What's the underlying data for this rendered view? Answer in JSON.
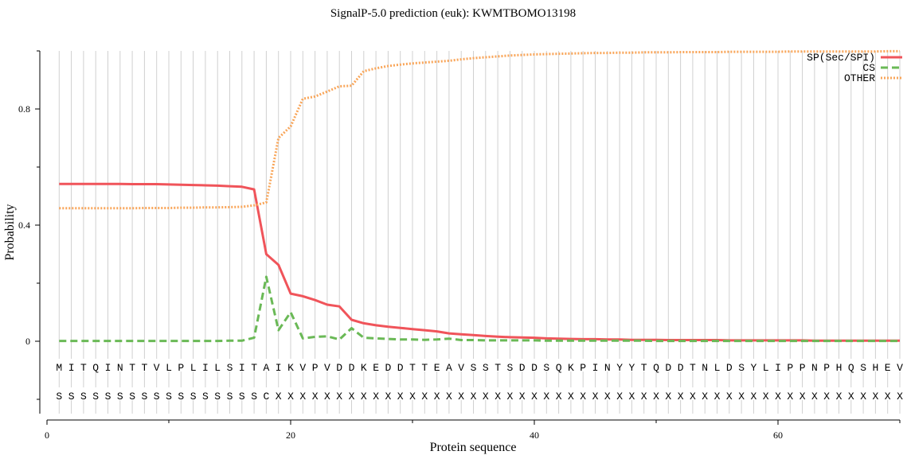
{
  "chart_data": {
    "type": "line",
    "title": "SignalP-5.0 prediction (euk):  KWMTBOMO13198",
    "xlabel": "Protein sequence",
    "ylabel": "Probability",
    "xlim": [
      0,
      70
    ],
    "ylim": [
      -0.25,
      1.0
    ],
    "xticks": [
      0,
      20,
      40,
      60
    ],
    "xticks_minor": [
      10,
      30,
      50,
      70
    ],
    "yticks": [
      0,
      0.4,
      0.8
    ],
    "yticks_minor": [
      -0.2,
      0.2,
      0.6,
      1.0
    ],
    "ytick_labels": [
      "0",
      "0.4",
      "0.8"
    ],
    "xtick_labels": [
      "0",
      "20",
      "40",
      "60"
    ],
    "grid": "vertical lines at each residue",
    "legend_placement": "top-right",
    "sequence": [
      "M",
      "I",
      "T",
      "Q",
      "I",
      "N",
      "T",
      "T",
      "V",
      "L",
      "P",
      "L",
      "I",
      "L",
      "S",
      "I",
      "T",
      "A",
      "I",
      "K",
      "V",
      "P",
      "V",
      "D",
      "D",
      "K",
      "E",
      "D",
      "D",
      "T",
      "T",
      "E",
      "A",
      "V",
      "S",
      "S",
      "T",
      "S",
      "D",
      "D",
      "S",
      "Q",
      "K",
      "P",
      "I",
      "N",
      "Y",
      "Y",
      "T",
      "Q",
      "D",
      "D",
      "T",
      "N",
      "L",
      "D",
      "S",
      "Y",
      "L",
      "I",
      "P",
      "P",
      "N",
      "P",
      "H",
      "Q",
      "S",
      "H",
      "E",
      "V"
    ],
    "labels": [
      "S",
      "S",
      "S",
      "S",
      "S",
      "S",
      "S",
      "S",
      "S",
      "S",
      "S",
      "S",
      "S",
      "S",
      "S",
      "S",
      "S",
      "C",
      "X",
      "X",
      "X",
      "X",
      "X",
      "X",
      "X",
      "X",
      "X",
      "X",
      "X",
      "X",
      "X",
      "X",
      "X",
      "X",
      "X",
      "X",
      "X",
      "X",
      "X",
      "X",
      "X",
      "X",
      "X",
      "X",
      "X",
      "X",
      "X",
      "X",
      "X",
      "X",
      "X",
      "X",
      "X",
      "X",
      "X",
      "X",
      "X",
      "X",
      "X",
      "X",
      "X",
      "X",
      "X",
      "X",
      "X",
      "X",
      "X",
      "X",
      "X",
      "X"
    ],
    "series": [
      {
        "name": "SP(Sec/SPI)",
        "color": "#f0545a",
        "style": "solid",
        "values": [
          0.542,
          0.542,
          0.542,
          0.542,
          0.542,
          0.542,
          0.541,
          0.541,
          0.541,
          0.54,
          0.539,
          0.538,
          0.537,
          0.536,
          0.534,
          0.532,
          0.523,
          0.3,
          0.263,
          0.164,
          0.155,
          0.142,
          0.126,
          0.12,
          0.074,
          0.062,
          0.055,
          0.05,
          0.046,
          0.042,
          0.038,
          0.034,
          0.027,
          0.024,
          0.021,
          0.018,
          0.016,
          0.014,
          0.013,
          0.012,
          0.01,
          0.009,
          0.008,
          0.007,
          0.007,
          0.006,
          0.006,
          0.005,
          0.005,
          0.005,
          0.004,
          0.004,
          0.004,
          0.004,
          0.004,
          0.003,
          0.003,
          0.003,
          0.003,
          0.003,
          0.003,
          0.003,
          0.002,
          0.002,
          0.002,
          0.002,
          0.002,
          0.002,
          0.002,
          0.002
        ]
      },
      {
        "name": "CS",
        "color": "#6ab956",
        "style": "dashed",
        "values": [
          0.001,
          0.001,
          0.001,
          0.001,
          0.001,
          0.001,
          0.001,
          0.001,
          0.001,
          0.001,
          0.001,
          0.001,
          0.001,
          0.001,
          0.002,
          0.002,
          0.012,
          0.222,
          0.038,
          0.1,
          0.01,
          0.015,
          0.017,
          0.006,
          0.045,
          0.012,
          0.01,
          0.008,
          0.006,
          0.006,
          0.005,
          0.006,
          0.009,
          0.004,
          0.004,
          0.003,
          0.003,
          0.003,
          0.003,
          0.003,
          0.002,
          0.002,
          0.002,
          0.002,
          0.002,
          0.002,
          0.002,
          0.002,
          0.002,
          0.001,
          0.001,
          0.001,
          0.001,
          0.001,
          0.001,
          0.001,
          0.001,
          0.001,
          0.001,
          0.001,
          0.001,
          0.001,
          0.001,
          0.001,
          0.001,
          0.001,
          0.001,
          0.001,
          0.001,
          0.001
        ]
      },
      {
        "name": "OTHER",
        "color": "#f9a65a",
        "style": "dotted",
        "values": [
          0.458,
          0.458,
          0.458,
          0.458,
          0.458,
          0.458,
          0.458,
          0.459,
          0.459,
          0.459,
          0.46,
          0.46,
          0.461,
          0.461,
          0.462,
          0.463,
          0.468,
          0.478,
          0.7,
          0.74,
          0.835,
          0.843,
          0.86,
          0.878,
          0.88,
          0.93,
          0.94,
          0.948,
          0.953,
          0.957,
          0.96,
          0.963,
          0.966,
          0.971,
          0.975,
          0.978,
          0.981,
          0.984,
          0.986,
          0.988,
          0.989,
          0.99,
          0.991,
          0.992,
          0.993,
          0.993,
          0.994,
          0.994,
          0.995,
          0.995,
          0.995,
          0.996,
          0.996,
          0.996,
          0.996,
          0.997,
          0.997,
          0.997,
          0.997,
          0.997,
          0.998,
          0.998,
          0.998,
          0.998,
          0.998,
          0.998,
          0.998,
          0.998,
          0.999,
          0.999
        ]
      }
    ]
  }
}
